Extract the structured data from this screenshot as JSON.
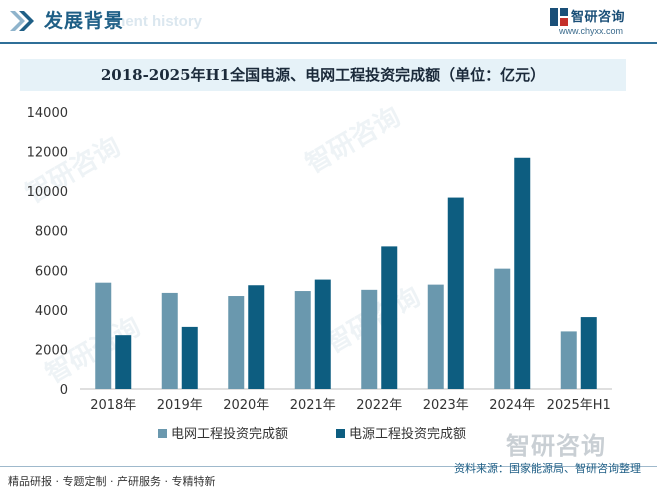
{
  "header": {
    "title": "发展背景",
    "watermark": "ment history",
    "icon": "double-chevron-icon"
  },
  "logo": {
    "name": "智研咨询",
    "url": "www.chyxx.com",
    "icon": "brand-logo-icon"
  },
  "watermarks": [
    "智研咨询",
    "智研咨询",
    "智研咨询",
    "智研咨询"
  ],
  "colors": {
    "series1": "#6a98ae",
    "series2": "#0d5d80",
    "header": "#1f5f86",
    "title_band": "#e6f2f8"
  },
  "chart_data": {
    "type": "bar",
    "title": "2018-2025年H1全国电源、电网工程投资完成额（单位：亿元）",
    "categories": [
      "2018年",
      "2019年",
      "2020年",
      "2021年",
      "2022年",
      "2023年",
      "2024年",
      "2025年H1"
    ],
    "series": [
      {
        "name": "电网工程投资完成额",
        "values": [
          5373,
          4856,
          4699,
          4951,
          5012,
          5275,
          6083,
          2911
        ]
      },
      {
        "name": "电源工程投资完成额",
        "values": [
          2721,
          3139,
          5244,
          5530,
          7208,
          9675,
          11687,
          3635
        ]
      }
    ],
    "ylim": [
      0,
      14000
    ],
    "yticks": [
      "0",
      "2000",
      "4000",
      "6000",
      "8000",
      "10000",
      "12000",
      "14000"
    ],
    "grid": false,
    "legend": "bottom"
  },
  "footer": {
    "left": "精品研报 · 专题定制 · 产研服务 · 专精特新",
    "source": "资料来源：国家能源局、智研咨询整理",
    "brand": "智研咨询"
  }
}
